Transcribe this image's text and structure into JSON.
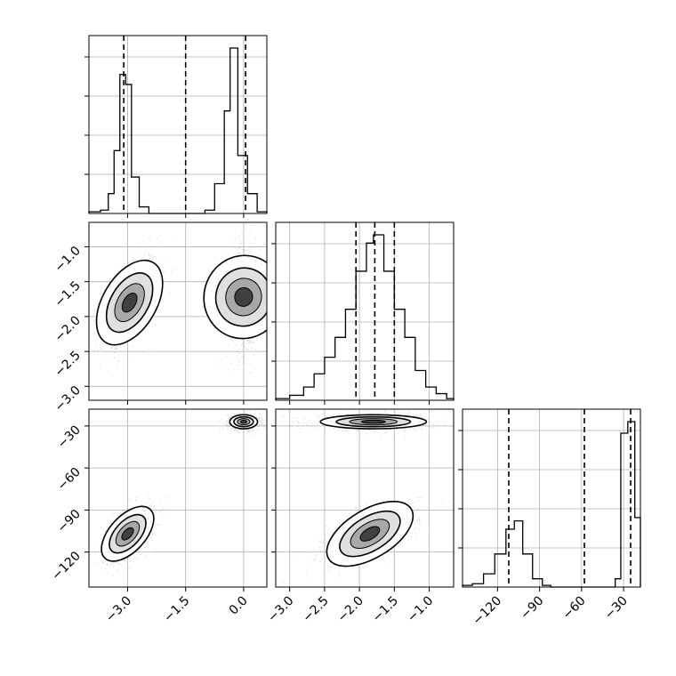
{
  "chart_data": {
    "type": "corner",
    "grid": true,
    "parameters": [
      {
        "range": [
          -4.0,
          0.6
        ],
        "ticks": [
          -3.0,
          -1.5,
          0.0
        ],
        "tick_labels": [
          "−3.0",
          "−1.5",
          "0.0"
        ],
        "quantiles": [
          -3.1,
          -1.5,
          0.05
        ]
      },
      {
        "range": [
          -3.2,
          -0.65
        ],
        "ticks": [
          -3.0,
          -2.5,
          -2.0,
          -1.5,
          -1.0
        ],
        "tick_labels": [
          "−3.0",
          "−2.5",
          "−2.0",
          "−1.5",
          "−1.0"
        ],
        "quantiles": [
          -2.05,
          -1.78,
          -1.5
        ]
      },
      {
        "range": [
          -145,
          -18
        ],
        "ticks": [
          -120,
          -90,
          -60,
          -30
        ],
        "tick_labels": [
          "−120",
          "−90",
          "−60",
          "−30"
        ],
        "quantiles": [
          -112,
          -58,
          -25
        ]
      }
    ],
    "marginal_histograms": [
      {
        "param": 0,
        "bins": [
          [
            -4.0,
            -3.7,
            0.01
          ],
          [
            -3.7,
            -3.5,
            0.02
          ],
          [
            -3.5,
            -3.35,
            0.12
          ],
          [
            -3.35,
            -3.2,
            0.38
          ],
          [
            -3.2,
            -3.05,
            0.84
          ],
          [
            -3.05,
            -2.9,
            0.78
          ],
          [
            -2.9,
            -2.7,
            0.22
          ],
          [
            -2.7,
            -2.45,
            0.04
          ],
          [
            -2.45,
            -1.0,
            0.0
          ],
          [
            -1.0,
            -0.75,
            0.02
          ],
          [
            -0.75,
            -0.5,
            0.18
          ],
          [
            -0.5,
            -0.35,
            0.62
          ],
          [
            -0.35,
            -0.15,
            1.0
          ],
          [
            -0.15,
            0.1,
            0.35
          ],
          [
            0.1,
            0.35,
            0.12
          ],
          [
            0.35,
            0.6,
            0.01
          ]
        ]
      },
      {
        "param": 1,
        "bins": [
          [
            -3.2,
            -3.0,
            0.01
          ],
          [
            -3.0,
            -2.8,
            0.03
          ],
          [
            -2.8,
            -2.65,
            0.08
          ],
          [
            -2.65,
            -2.5,
            0.16
          ],
          [
            -2.5,
            -2.35,
            0.26
          ],
          [
            -2.35,
            -2.2,
            0.38
          ],
          [
            -2.2,
            -2.05,
            0.55
          ],
          [
            -2.05,
            -1.9,
            0.78
          ],
          [
            -1.9,
            -1.8,
            0.95
          ],
          [
            -1.8,
            -1.65,
            1.0
          ],
          [
            -1.65,
            -1.5,
            0.78
          ],
          [
            -1.5,
            -1.35,
            0.55
          ],
          [
            -1.35,
            -1.2,
            0.38
          ],
          [
            -1.2,
            -1.05,
            0.18
          ],
          [
            -1.05,
            -0.9,
            0.08
          ],
          [
            -0.9,
            -0.75,
            0.04
          ],
          [
            -0.75,
            -0.65,
            0.01
          ]
        ]
      },
      {
        "param": 2,
        "bins": [
          [
            -145,
            -138,
            0.01
          ],
          [
            -138,
            -130,
            0.02
          ],
          [
            -130,
            -122,
            0.08
          ],
          [
            -122,
            -114,
            0.2
          ],
          [
            -114,
            -108,
            0.35
          ],
          [
            -108,
            -102,
            0.4
          ],
          [
            -102,
            -95,
            0.2
          ],
          [
            -95,
            -88,
            0.05
          ],
          [
            -88,
            -82,
            0.01
          ],
          [
            -82,
            -36,
            0.0
          ],
          [
            -36,
            -32,
            0.05
          ],
          [
            -32,
            -27,
            0.93
          ],
          [
            -27,
            -22,
            1.0
          ],
          [
            -22,
            -18,
            0.42
          ]
        ]
      }
    ],
    "density_blobs": [
      {
        "x": 0,
        "y": 1,
        "cx": -2.95,
        "cy": -1.8,
        "sx": 0.32,
        "sy": 0.3,
        "rho": 0.5
      },
      {
        "x": 0,
        "y": 1,
        "cx": 0.0,
        "cy": -1.72,
        "sx": 0.18,
        "sy": 0.36,
        "rho": 0.05
      },
      {
        "x": 0,
        "y": 2,
        "cx": -3.0,
        "cy": -107,
        "sx": 0.3,
        "sy": 9,
        "rho": 0.55
      },
      {
        "x": 0,
        "y": 2,
        "cx": 0.0,
        "cy": -27,
        "sx": 0.18,
        "sy": 2.5,
        "rho": 0.0
      },
      {
        "x": 1,
        "y": 2,
        "cx": -1.8,
        "cy": -27,
        "sx": 0.38,
        "sy": 2.5,
        "rho": 0.0
      },
      {
        "x": 1,
        "y": 2,
        "cx": -1.85,
        "cy": -107,
        "sx": 0.3,
        "sy": 9,
        "rho": 0.6
      }
    ]
  }
}
